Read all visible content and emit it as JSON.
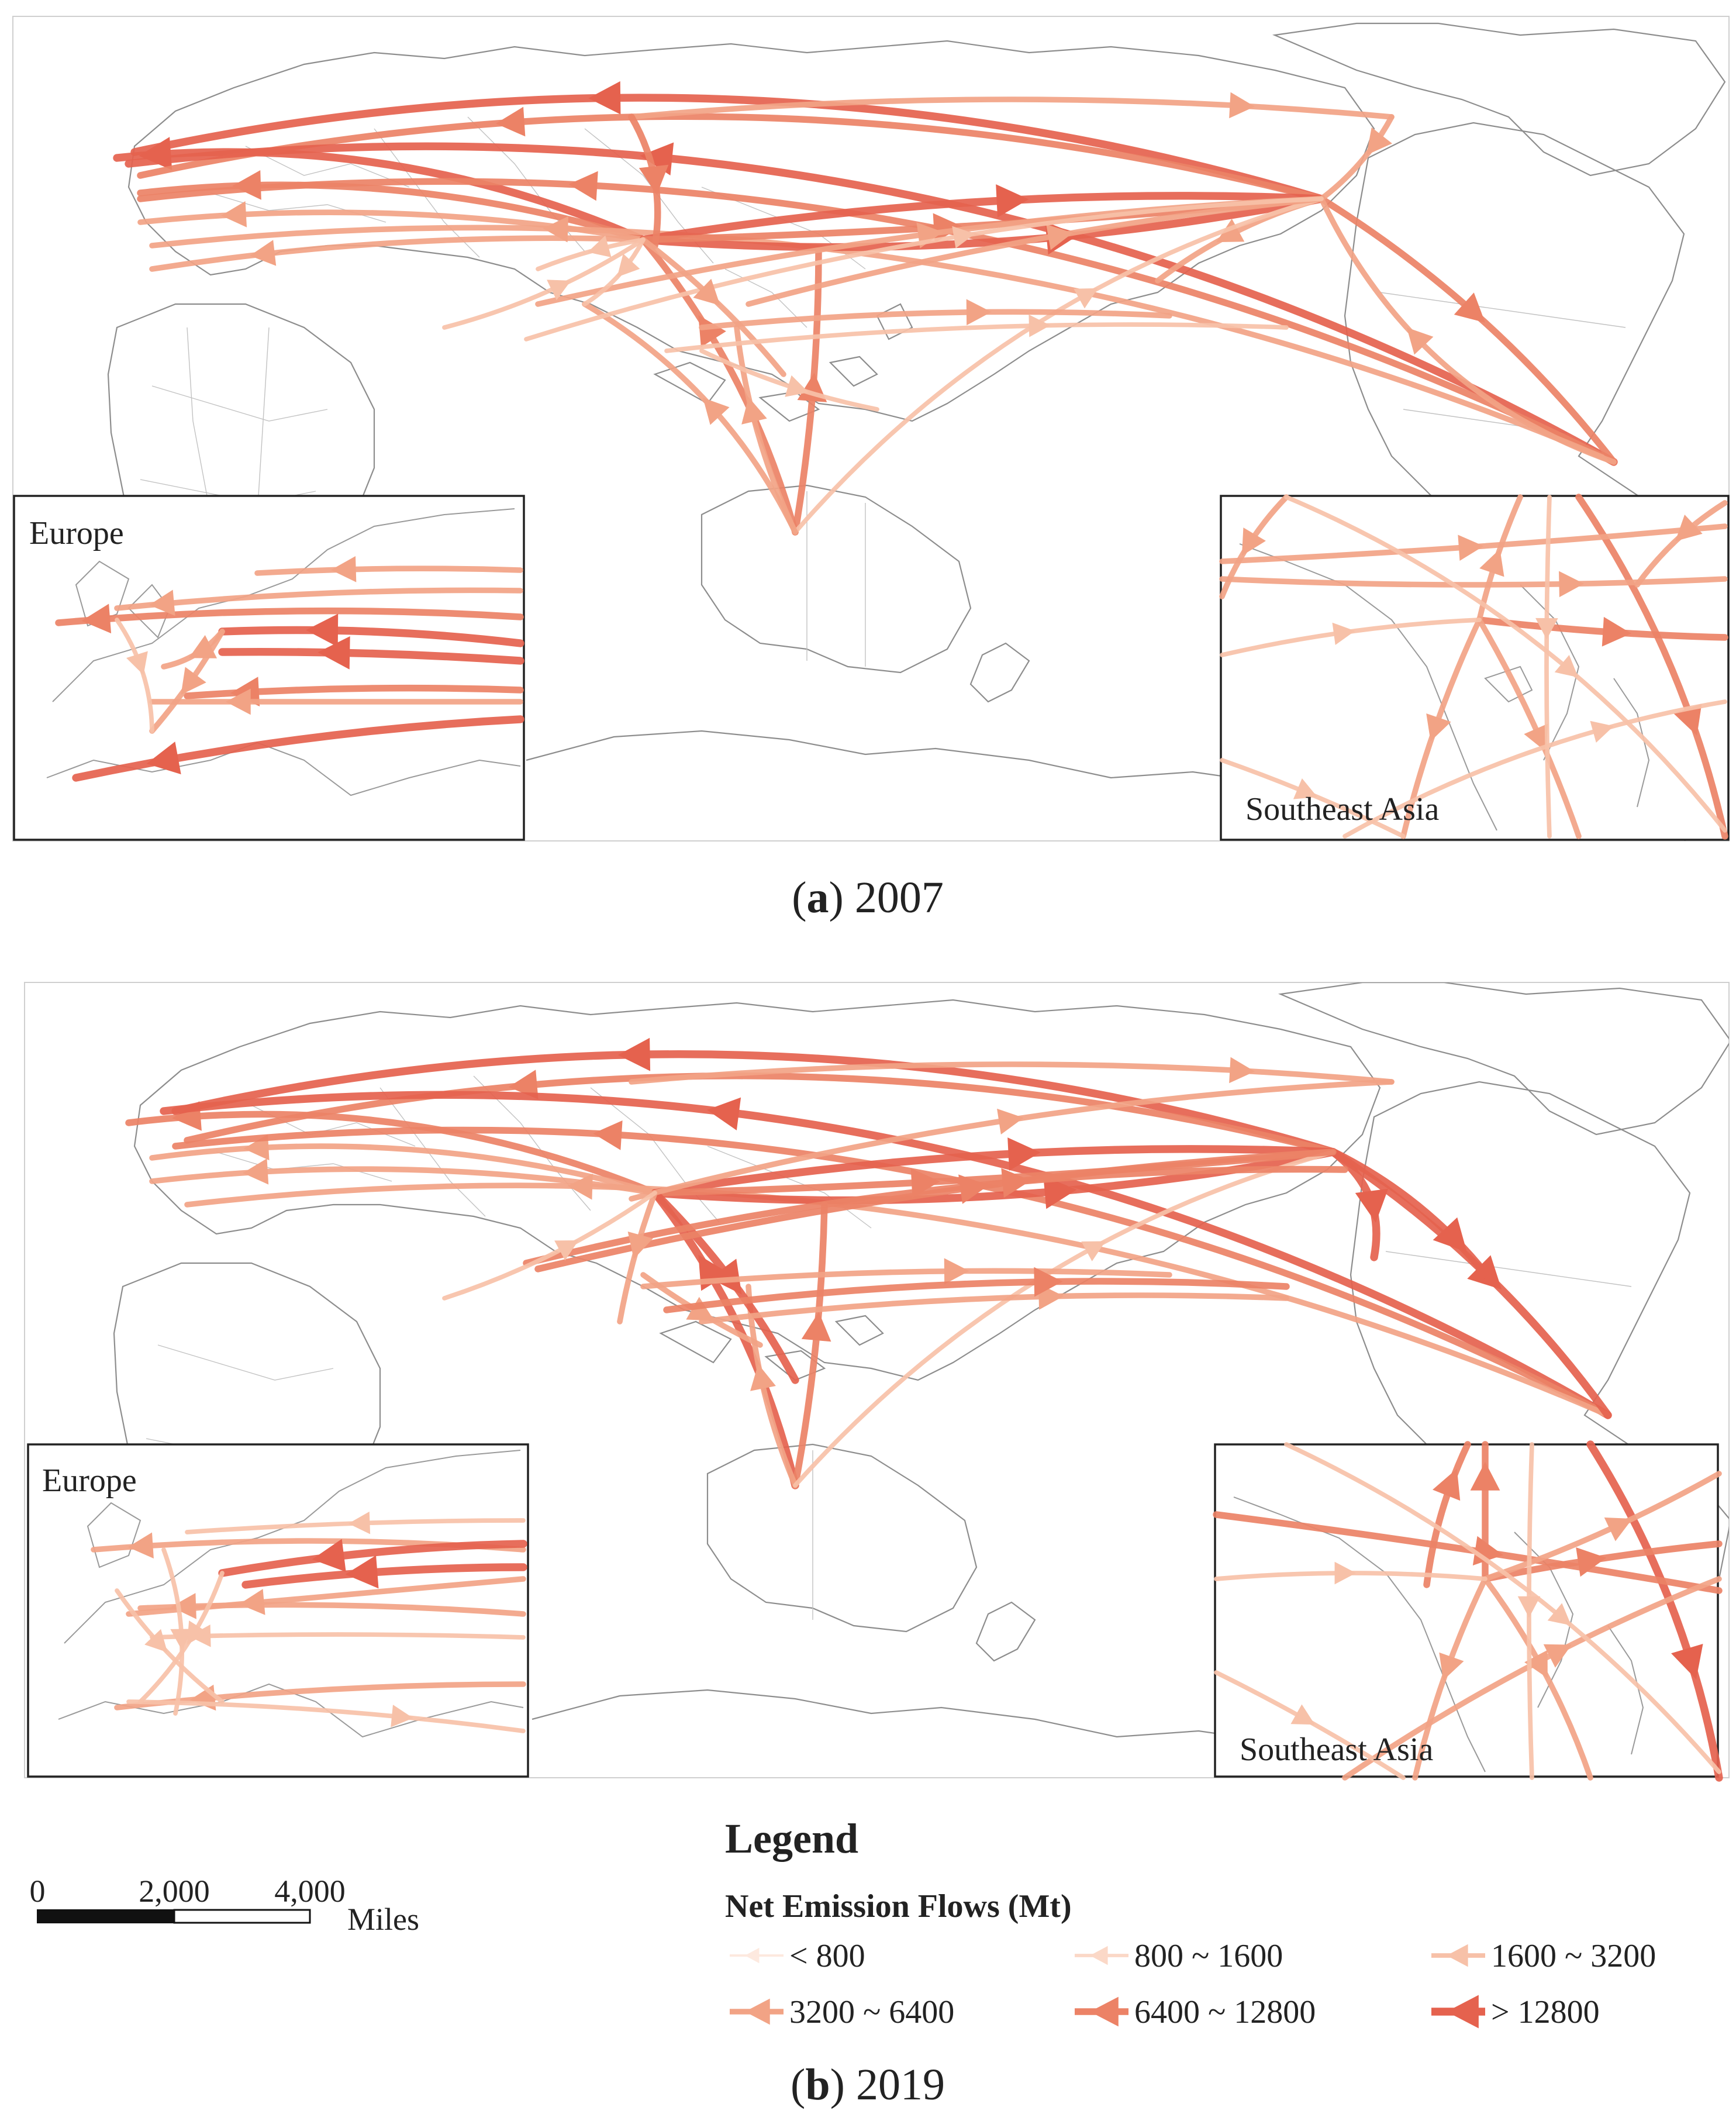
{
  "panels": [
    {
      "id": "a",
      "caption_letter": "a",
      "caption_year": "2007",
      "insets": {
        "europe": "Europe",
        "southeast_asia": "Southeast Asia"
      }
    },
    {
      "id": "b",
      "caption_letter": "b",
      "caption_year": "2019",
      "insets": {
        "europe": "Europe",
        "southeast_asia": "Southeast Asia"
      }
    }
  ],
  "scalebar": {
    "ticks": [
      "0",
      "2,000",
      "4,000"
    ],
    "unit": "Miles"
  },
  "legend": {
    "title": "Legend",
    "subtitle": "Net Emission Flows (Mt)",
    "classes": [
      {
        "label": "< 800",
        "color": "#fde9df",
        "weight": 1
      },
      {
        "label": "800 ~ 1600",
        "color": "#fbd8c7",
        "weight": 2
      },
      {
        "label": "1600 ~ 3200",
        "color": "#f7c1a8",
        "weight": 3
      },
      {
        "label": "3200 ~ 6400",
        "color": "#f2a385",
        "weight": 4
      },
      {
        "label": "6400 ~ 12800",
        "color": "#ec8266",
        "weight": 5
      },
      {
        "label": "> 12800",
        "color": "#e5624e",
        "weight": 6
      }
    ]
  }
}
